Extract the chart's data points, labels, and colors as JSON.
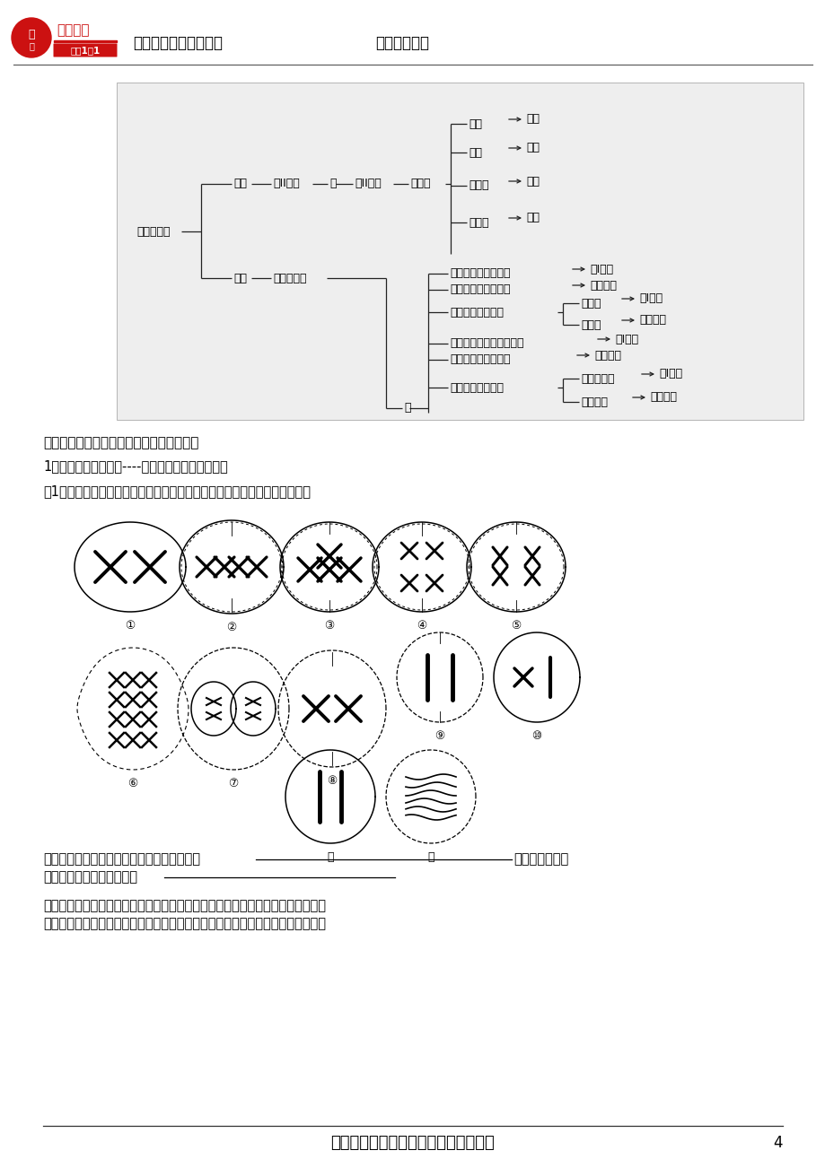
{
  "page_width": 9.2,
  "page_height": 13.02,
  "bg_color": "#ffffff",
  "header_text1": "龙文教育专用授课材料",
  "header_text2": "教师：刘赛华",
  "section4_title": "四、与有丝分裂和减数分裂图像相关的题型",
  "section4_text1": "1、一般图像识别问题----利用上面的识别方法即可",
  "section4_text2": "例1、下图是某种动物细胞进行有丝分裂和减数分裂部分图，据图回答问题：",
  "bottom_line1": "按先后顺序把有关有丝分裂图的号码排列起来",
  "bottom_line1b": "；按顺序把有关",
  "bottom_line2": "减数分裂图的号码排列起来",
  "analysis_line1": "解析：此类题目对于学生来说是图像题中最难得分的，学生不仅要把各个图像准确",
  "analysis_line2": "的识别出，而且还要把它们按正确的顺序排列起来，只要其中一个序号排错，这一",
  "footer_text": "只要路是对的，就不要怕路远！！！！",
  "footer_page": "4"
}
